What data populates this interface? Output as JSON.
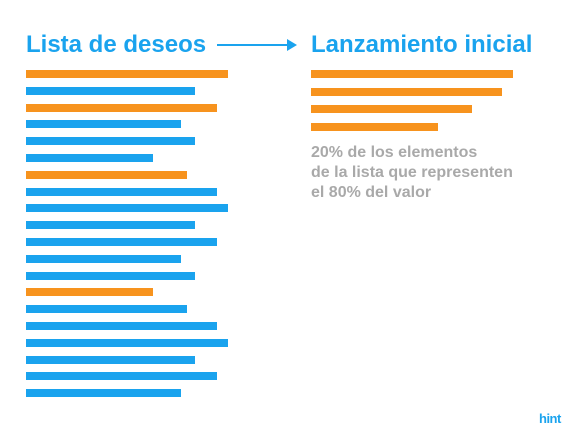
{
  "left_title": "Lista de deseos",
  "right_title": "Lanzamiento inicial",
  "note_lines": [
    "20% de los elementos",
    "de la lista que representen",
    "el 80% del valor"
  ],
  "logo": "hint",
  "colors": {
    "blue": "#1aa3ee",
    "orange": "#f7931e",
    "note_gray": "#a9a9a9"
  },
  "wishlist": [
    {
      "category": "orange",
      "length": 202
    },
    {
      "category": "blue",
      "length": 169
    },
    {
      "category": "orange",
      "length": 191
    },
    {
      "category": "blue",
      "length": 155
    },
    {
      "category": "blue",
      "length": 169
    },
    {
      "category": "blue",
      "length": 127
    },
    {
      "category": "orange",
      "length": 161
    },
    {
      "category": "blue",
      "length": 191
    },
    {
      "category": "blue",
      "length": 202
    },
    {
      "category": "blue",
      "length": 169
    },
    {
      "category": "blue",
      "length": 191
    },
    {
      "category": "blue",
      "length": 155
    },
    {
      "category": "blue",
      "length": 169
    },
    {
      "category": "orange",
      "length": 127
    },
    {
      "category": "blue",
      "length": 161
    },
    {
      "category": "blue",
      "length": 191
    },
    {
      "category": "blue",
      "length": 202
    },
    {
      "category": "blue",
      "length": 169
    },
    {
      "category": "blue",
      "length": 191
    },
    {
      "category": "blue",
      "length": 155
    }
  ],
  "initial_release": [
    {
      "category": "orange",
      "length": 202
    },
    {
      "category": "orange",
      "length": 191
    },
    {
      "category": "orange",
      "length": 161
    },
    {
      "category": "orange",
      "length": 127
    }
  ]
}
